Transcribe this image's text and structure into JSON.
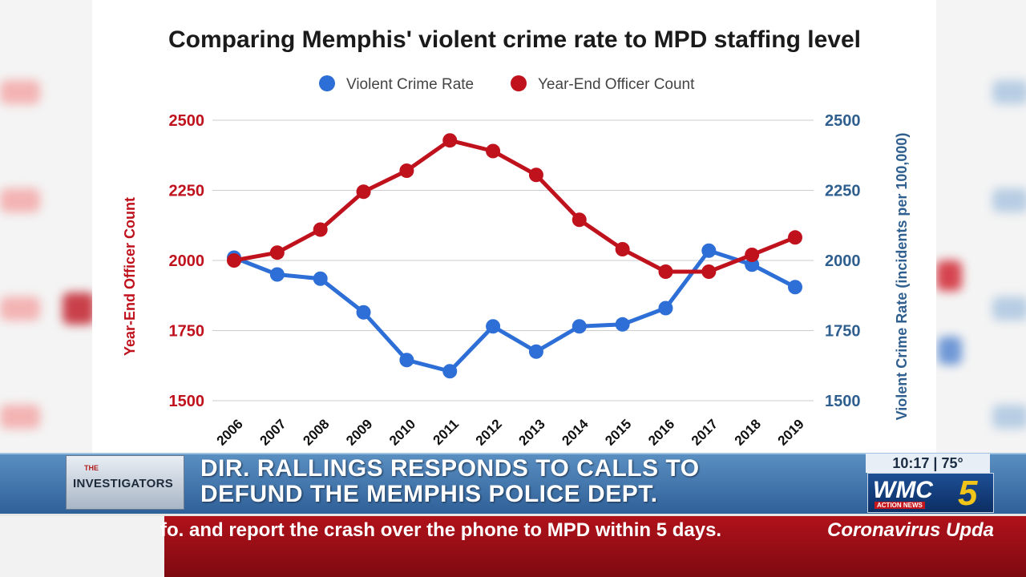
{
  "chart_data": {
    "type": "line",
    "title": "Comparing Memphis' violent crime rate to MPD staffing level",
    "x": [
      "2006",
      "2007",
      "2008",
      "2009",
      "2010",
      "2011",
      "2012",
      "2013",
      "2014",
      "2015",
      "2016",
      "2017",
      "2018",
      "2019"
    ],
    "series": [
      {
        "name": "Violent Crime Rate",
        "axis": "right",
        "color": "#2d6fd6",
        "values": [
          2010,
          1950,
          1935,
          1815,
          1645,
          1605,
          1765,
          1675,
          1765,
          1772,
          1830,
          2035,
          1985,
          1905
        ]
      },
      {
        "name": "Year-End Officer Count",
        "axis": "left",
        "color": "#c0121d",
        "values": [
          2000,
          2028,
          2110,
          2245,
          2320,
          2428,
          2390,
          2305,
          2145,
          2040,
          1960,
          1960,
          2020,
          2082
        ]
      }
    ],
    "ylabel_left": "Year-End Officer Count",
    "ylabel_right": "Violent Crime Rate (incidents per 100,000)",
    "yticks": [
      1500,
      1750,
      2000,
      2250,
      2500
    ],
    "ylim": [
      1500,
      2500
    ],
    "left_axis_color": "#c0121d",
    "right_axis_color": "#2f5f8f",
    "legend_position": "top-center",
    "grid": true
  },
  "lower_third": {
    "show_logo_small": "THE",
    "show_logo": "INVESTIGATORS",
    "headline_line1": "DIR. RALLINGS RESPONDS TO CALLS TO",
    "headline_line2": "DEFUND THE MEMPHIS POLICE DEPT.",
    "time": "10:17",
    "temperature": "75°",
    "station": "WMC",
    "station_number": "5",
    "station_tagline": "ACTION NEWS"
  },
  "ticker": {
    "text": "fo. and report the crash over the phone to MPD within 5 days.",
    "text_2": "Coronavirus Upda"
  }
}
